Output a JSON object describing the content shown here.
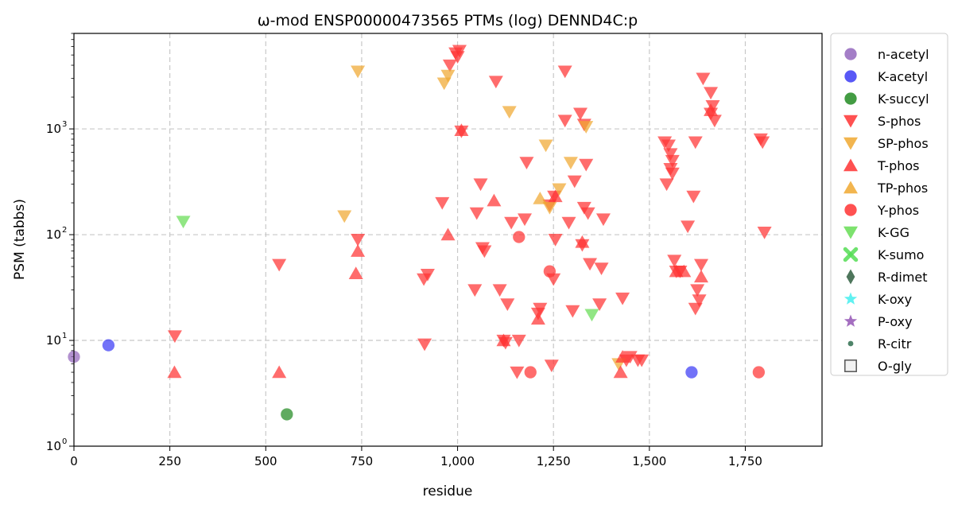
{
  "chart_data": {
    "type": "scatter",
    "title": "ω-mod ENSP00000473565 PTMs (log) DENND4C:p",
    "xlabel": "residue",
    "ylabel": "PSM (tabbs)",
    "xlim": [
      0,
      1950
    ],
    "ylim": [
      1,
      8000
    ],
    "yscale": "log",
    "grid": true,
    "legend_position": "outside-right",
    "x_ticks": [
      0,
      250,
      500,
      750,
      1000,
      1250,
      1500,
      1750
    ],
    "x_tick_labels": [
      "0",
      "250",
      "500",
      "750",
      "1,000",
      "1,250",
      "1,500",
      "1,750"
    ],
    "y_ticks": [
      1,
      10,
      100,
      1000
    ],
    "y_tick_labels": [
      "10",
      "10",
      "10",
      "10"
    ],
    "y_tick_exponents": [
      "0",
      "1",
      "2",
      "3"
    ],
    "series": [
      {
        "name": "n-acetyl",
        "marker": "circle",
        "color": "#9467bd",
        "points": [
          [
            0,
            7
          ]
        ]
      },
      {
        "name": "K-acetyl",
        "marker": "circle",
        "color": "#3b3bf5",
        "points": [
          [
            90,
            9
          ],
          [
            1610,
            5
          ]
        ]
      },
      {
        "name": "K-succyl",
        "marker": "circle",
        "color": "#228b22",
        "points": [
          [
            555,
            2
          ]
        ]
      },
      {
        "name": "S-phos",
        "marker": "triangle-down",
        "color": "#ff3333",
        "points": [
          [
            263,
            11
          ],
          [
            535,
            52
          ],
          [
            740,
            90
          ],
          [
            912,
            38
          ],
          [
            914,
            9.2
          ],
          [
            922,
            42
          ],
          [
            960,
            200
          ],
          [
            980,
            4000
          ],
          [
            995,
            5200
          ],
          [
            1000,
            4800
          ],
          [
            1005,
            5500
          ],
          [
            1010,
            950
          ],
          [
            1045,
            30
          ],
          [
            1050,
            160
          ],
          [
            1060,
            300
          ],
          [
            1065,
            75
          ],
          [
            1070,
            70
          ],
          [
            1100,
            2800
          ],
          [
            1110,
            30
          ],
          [
            1120,
            10
          ],
          [
            1125,
            9.5
          ],
          [
            1130,
            22
          ],
          [
            1140,
            130
          ],
          [
            1155,
            5
          ],
          [
            1160,
            10
          ],
          [
            1175,
            140
          ],
          [
            1180,
            480
          ],
          [
            1210,
            18
          ],
          [
            1215,
            20
          ],
          [
            1240,
            190
          ],
          [
            1245,
            5.8
          ],
          [
            1250,
            38
          ],
          [
            1252,
            230
          ],
          [
            1255,
            90
          ],
          [
            1280,
            3500
          ],
          [
            1280,
            1200
          ],
          [
            1290,
            130
          ],
          [
            1300,
            19
          ],
          [
            1305,
            320
          ],
          [
            1320,
            1400
          ],
          [
            1325,
            80
          ],
          [
            1330,
            1100
          ],
          [
            1330,
            180
          ],
          [
            1335,
            460
          ],
          [
            1340,
            160
          ],
          [
            1345,
            53
          ],
          [
            1370,
            22
          ],
          [
            1375,
            48
          ],
          [
            1380,
            140
          ],
          [
            1430,
            25
          ],
          [
            1440,
            6.5
          ],
          [
            1450,
            7
          ],
          [
            1470,
            6.5
          ],
          [
            1480,
            6.5
          ],
          [
            1540,
            750
          ],
          [
            1545,
            300
          ],
          [
            1550,
            700
          ],
          [
            1555,
            580
          ],
          [
            1555,
            420
          ],
          [
            1560,
            500
          ],
          [
            1560,
            380
          ],
          [
            1565,
            57
          ],
          [
            1570,
            45
          ],
          [
            1580,
            45
          ],
          [
            1600,
            120
          ],
          [
            1615,
            230
          ],
          [
            1620,
            750
          ],
          [
            1620,
            20
          ],
          [
            1625,
            30
          ],
          [
            1630,
            24
          ],
          [
            1635,
            52
          ],
          [
            1640,
            3000
          ],
          [
            1660,
            2200
          ],
          [
            1660,
            1400
          ],
          [
            1665,
            1650
          ],
          [
            1670,
            1200
          ],
          [
            1790,
            800
          ],
          [
            1795,
            750
          ],
          [
            1800,
            105
          ]
        ]
      },
      {
        "name": "SP-phos",
        "marker": "triangle-down",
        "color": "#f0a830",
        "points": [
          [
            705,
            150
          ],
          [
            740,
            3500
          ],
          [
            965,
            2700
          ],
          [
            975,
            3200
          ],
          [
            1135,
            1450
          ],
          [
            1230,
            700
          ],
          [
            1240,
            180
          ],
          [
            1265,
            270
          ],
          [
            1295,
            480
          ],
          [
            1335,
            1050
          ],
          [
            1420,
            6
          ]
        ]
      },
      {
        "name": "T-phos",
        "marker": "triangle-up",
        "color": "#ff3333",
        "points": [
          [
            262,
            5
          ],
          [
            535,
            5
          ],
          [
            735,
            43
          ],
          [
            740,
            70
          ],
          [
            975,
            100
          ],
          [
            1010,
            970
          ],
          [
            1095,
            210
          ],
          [
            1120,
            10
          ],
          [
            1210,
            16
          ],
          [
            1255,
            230
          ],
          [
            1325,
            85
          ],
          [
            1425,
            5
          ],
          [
            1430,
            7
          ],
          [
            1570,
            45
          ],
          [
            1590,
            45
          ],
          [
            1635,
            40
          ],
          [
            1660,
            1500
          ]
        ]
      },
      {
        "name": "TP-phos",
        "marker": "triangle-up",
        "color": "#f0a830",
        "points": [
          [
            1215,
            220
          ]
        ]
      },
      {
        "name": "Y-phos",
        "marker": "circle",
        "color": "#ff3333",
        "points": [
          [
            1160,
            95
          ],
          [
            1190,
            5
          ],
          [
            1240,
            45
          ],
          [
            1785,
            5
          ]
        ]
      },
      {
        "name": "K-GG",
        "marker": "triangle-down",
        "color": "#66dd55",
        "points": [
          [
            285,
            133
          ],
          [
            1350,
            17.5
          ]
        ]
      },
      {
        "name": "K-sumo",
        "marker": "x",
        "color": "#55dd55",
        "points": []
      },
      {
        "name": "R-dimet",
        "marker": "diamond",
        "color": "#2f5e3f",
        "points": []
      },
      {
        "name": "K-oxy",
        "marker": "star",
        "color": "#44eeee",
        "points": []
      },
      {
        "name": "P-oxy",
        "marker": "star",
        "color": "#9455b5",
        "points": []
      },
      {
        "name": "R-citr",
        "marker": "small-circle",
        "color": "#2f6e4f",
        "points": []
      },
      {
        "name": "O-gly",
        "marker": "square-open",
        "color": "#555555",
        "points": []
      }
    ]
  }
}
